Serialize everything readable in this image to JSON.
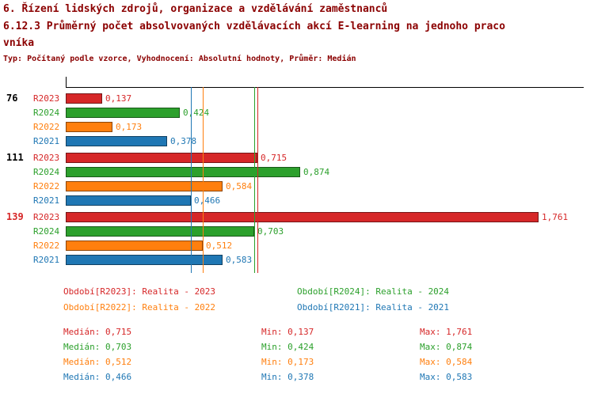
{
  "header": {
    "title1": "6. Řízení lidských zdrojů, organizace a vzdělávání zaměstnanců",
    "title2_line1": "6.12.3 Průměrný počet absolvovaných vzdělávacích akcí E-learning na jednoho praco",
    "title2_line2": "vníka",
    "subtitle": "Typ: Počítaný podle vzorce, Vyhodnocení: Absolutní hodnoty, Průměr: Medián"
  },
  "colors": {
    "title": "#8b0000",
    "axis": "#000000",
    "R2023": "#d62728",
    "R2024": "#2ca02c",
    "R2022": "#ff7f0e",
    "R2021": "#1f77b4"
  },
  "chart_data": {
    "type": "bar",
    "orientation": "horizontal",
    "title": "6.12.3 Průměrný počet absolvovaných vzdělávacích akcí E-learning na jednoho pracovníka",
    "xlabel": "",
    "ylabel": "",
    "xlim": [
      0,
      1.93
    ],
    "grid": false,
    "series_order": [
      "R2023",
      "R2024",
      "R2022",
      "R2021"
    ],
    "series_colors": {
      "R2023": "#d62728",
      "R2024": "#2ca02c",
      "R2022": "#ff7f0e",
      "R2021": "#1f77b4"
    },
    "groups": [
      {
        "label": "76",
        "label_color": "#000000",
        "values": {
          "R2023": 0.137,
          "R2024": 0.424,
          "R2022": 0.173,
          "R2021": 0.378
        }
      },
      {
        "label": "111",
        "label_color": "#000000",
        "values": {
          "R2023": 0.715,
          "R2024": 0.874,
          "R2022": 0.584,
          "R2021": 0.466
        }
      },
      {
        "label": "139",
        "label_color": "#d62728",
        "values": {
          "R2023": 1.761,
          "R2024": 0.703,
          "R2022": 0.512,
          "R2021": 0.583
        }
      }
    ],
    "median_lines": [
      {
        "series": "R2023",
        "value": 0.715
      },
      {
        "series": "R2024",
        "value": 0.703
      },
      {
        "series": "R2022",
        "value": 0.512
      },
      {
        "series": "R2021",
        "value": 0.466
      }
    ]
  },
  "legend": {
    "items": [
      {
        "series": "R2023",
        "text": "Období[R2023]: Realita - 2023"
      },
      {
        "series": "R2024",
        "text": "Období[R2024]: Realita - 2024"
      },
      {
        "series": "R2022",
        "text": "Období[R2022]: Realita - 2022"
      },
      {
        "series": "R2021",
        "text": "Období[R2021]: Realita - 2021"
      }
    ]
  },
  "stats": {
    "rows": [
      {
        "series": "R2023",
        "median": "Medián: 0,715",
        "min": "Min: 0,137",
        "max": "Max: 1,761"
      },
      {
        "series": "R2024",
        "median": "Medián: 0,703",
        "min": "Min: 0,424",
        "max": "Max: 0,874"
      },
      {
        "series": "R2022",
        "median": "Medián: 0,512",
        "min": "Min: 0,173",
        "max": "Max: 0,584"
      },
      {
        "series": "R2021",
        "median": "Medián: 0,466",
        "min": "Min: 0,378",
        "max": "Max: 0,583"
      }
    ]
  }
}
